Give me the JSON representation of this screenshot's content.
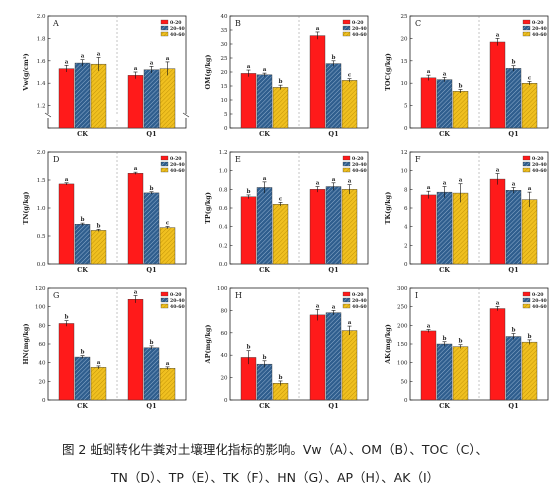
{
  "legend": [
    "0-20",
    "20-40",
    "40-60"
  ],
  "colors": {
    "s0": "#ff1a1a",
    "s1": "#2f5e8e",
    "s2": "#f0c020"
  },
  "categories": [
    "CK",
    "Q1"
  ],
  "caption": {
    "line1": "图 2 蚯蚓转化牛粪对土壤理化指标的影响。Vw（A）、OM（B）、TOC（C）、",
    "line2": "TN（D）、TP（E）、TK（F）、HN（G）、AP（H）、AK（I）"
  },
  "chart_data": [
    {
      "panel": "A",
      "type": "bar",
      "ylabel": "Vw(g/cm³)",
      "ylim": [
        1.0,
        2.0
      ],
      "ticks": [
        "",
        "1.2",
        "1.4",
        "1.6",
        "1.8",
        "2.0"
      ],
      "axis_break": true,
      "categories": [
        "CK",
        "Q1"
      ],
      "series": [
        {
          "name": "0-20",
          "values": [
            1.53,
            1.47
          ],
          "err": [
            0.03,
            0.03
          ],
          "sig": [
            "a",
            "a"
          ]
        },
        {
          "name": "20-40",
          "values": [
            1.58,
            1.52
          ],
          "err": [
            0.03,
            0.03
          ],
          "sig": [
            "a",
            "a"
          ]
        },
        {
          "name": "40-60",
          "values": [
            1.57,
            1.53
          ],
          "err": [
            0.06,
            0.06
          ],
          "sig": [
            "a",
            "a"
          ]
        }
      ]
    },
    {
      "panel": "B",
      "type": "bar",
      "ylabel": "OM(g/kg)",
      "ylim": [
        0,
        40
      ],
      "ticks": [
        "0",
        "5",
        "10",
        "15",
        "20",
        "25",
        "30",
        "35",
        "40"
      ],
      "categories": [
        "CK",
        "Q1"
      ],
      "series": [
        {
          "name": "0-20",
          "values": [
            19.5,
            33.0
          ],
          "err": [
            1.2,
            1.3
          ],
          "sig": [
            "a",
            "a"
          ]
        },
        {
          "name": "20-40",
          "values": [
            19.0,
            23.0
          ],
          "err": [
            0.6,
            1.0
          ],
          "sig": [
            "a",
            "b"
          ]
        },
        {
          "name": "40-60",
          "values": [
            14.5,
            17.0
          ],
          "err": [
            0.8,
            0.6
          ],
          "sig": [
            "b",
            "c"
          ]
        }
      ]
    },
    {
      "panel": "C",
      "type": "bar",
      "ylabel": "TOC(g/kg)",
      "ylim": [
        0,
        25
      ],
      "ticks": [
        "0",
        "5",
        "10",
        "15",
        "20",
        "25"
      ],
      "categories": [
        "CK",
        "Q1"
      ],
      "series": [
        {
          "name": "0-20",
          "values": [
            11.2,
            19.2
          ],
          "err": [
            0.6,
            0.8
          ],
          "sig": [
            "a",
            "a"
          ]
        },
        {
          "name": "20-40",
          "values": [
            10.8,
            13.3
          ],
          "err": [
            0.5,
            0.6
          ],
          "sig": [
            "a",
            "b"
          ]
        },
        {
          "name": "40-60",
          "values": [
            8.2,
            10.0
          ],
          "err": [
            0.4,
            0.4
          ],
          "sig": [
            "b",
            "c"
          ]
        }
      ]
    },
    {
      "panel": "D",
      "type": "bar",
      "ylabel": "TN(g/kg)",
      "ylim": [
        0,
        2.0
      ],
      "ticks": [
        "0.0",
        "0.5",
        "1.0",
        "1.5",
        "2.0"
      ],
      "categories": [
        "CK",
        "Q1"
      ],
      "series": [
        {
          "name": "0-20",
          "values": [
            1.43,
            1.62
          ],
          "err": [
            0.02,
            0.02
          ],
          "sig": [
            "a",
            "a"
          ]
        },
        {
          "name": "20-40",
          "values": [
            0.71,
            1.27
          ],
          "err": [
            0.02,
            0.02
          ],
          "sig": [
            "b",
            "b"
          ]
        },
        {
          "name": "40-60",
          "values": [
            0.6,
            0.65
          ],
          "err": [
            0.02,
            0.02
          ],
          "sig": [
            "b",
            "c"
          ]
        }
      ]
    },
    {
      "panel": "E",
      "type": "bar",
      "ylabel": "TP(g/kg)",
      "ylim": [
        0,
        1.2
      ],
      "ticks": [
        "0.0",
        "0.2",
        "0.4",
        "0.6",
        "0.8",
        "1.0",
        "1.2"
      ],
      "categories": [
        "CK",
        "Q1"
      ],
      "series": [
        {
          "name": "0-20",
          "values": [
            0.72,
            0.8
          ],
          "err": [
            0.02,
            0.03
          ],
          "sig": [
            "b",
            "a"
          ]
        },
        {
          "name": "20-40",
          "values": [
            0.82,
            0.83
          ],
          "err": [
            0.06,
            0.04
          ],
          "sig": [
            "a",
            "a"
          ]
        },
        {
          "name": "40-60",
          "values": [
            0.64,
            0.8
          ],
          "err": [
            0.02,
            0.05
          ],
          "sig": [
            "c",
            "a"
          ]
        }
      ]
    },
    {
      "panel": "F",
      "type": "bar",
      "ylabel": "TK(g/kg)",
      "ylim": [
        0,
        12
      ],
      "ticks": [
        "0",
        "2",
        "4",
        "6",
        "8",
        "10",
        "12"
      ],
      "categories": [
        "CK",
        "Q1"
      ],
      "series": [
        {
          "name": "0-20",
          "values": [
            7.4,
            9.1
          ],
          "err": [
            0.4,
            0.6
          ],
          "sig": [
            "a",
            "a"
          ]
        },
        {
          "name": "20-40",
          "values": [
            7.7,
            7.9
          ],
          "err": [
            0.6,
            0.3
          ],
          "sig": [
            "a",
            "a"
          ]
        },
        {
          "name": "40-60",
          "values": [
            7.6,
            6.9
          ],
          "err": [
            1.0,
            0.8
          ],
          "sig": [
            "a",
            "a"
          ]
        }
      ]
    },
    {
      "panel": "G",
      "type": "bar",
      "ylabel": "HN(mg/kg)",
      "ylim": [
        0,
        120
      ],
      "ticks": [
        "0",
        "20",
        "40",
        "60",
        "80",
        "100",
        "120"
      ],
      "categories": [
        "CK",
        "Q1"
      ],
      "series": [
        {
          "name": "0-20",
          "values": [
            82,
            108
          ],
          "err": [
            3,
            4
          ],
          "sig": [
            "b",
            "a"
          ]
        },
        {
          "name": "20-40",
          "values": [
            46,
            56
          ],
          "err": [
            1.5,
            2
          ],
          "sig": [
            "b",
            "b"
          ]
        },
        {
          "name": "40-60",
          "values": [
            35,
            34
          ],
          "err": [
            1.5,
            1.5
          ],
          "sig": [
            "a",
            "a"
          ]
        }
      ]
    },
    {
      "panel": "H",
      "type": "bar",
      "ylabel": "AP(mg/kg)",
      "ylim": [
        0,
        100
      ],
      "ticks": [
        "0",
        "20",
        "40",
        "60",
        "80",
        "100"
      ],
      "categories": [
        "CK",
        "Q1"
      ],
      "series": [
        {
          "name": "0-20",
          "values": [
            38,
            76
          ],
          "err": [
            6,
            5
          ],
          "sig": [
            "b",
            "a"
          ]
        },
        {
          "name": "20-40",
          "values": [
            32,
            78
          ],
          "err": [
            3,
            2
          ],
          "sig": [
            "b",
            "a"
          ]
        },
        {
          "name": "40-60",
          "values": [
            15,
            62
          ],
          "err": [
            2,
            4
          ],
          "sig": [
            "b",
            "a"
          ]
        }
      ]
    },
    {
      "panel": "I",
      "type": "bar",
      "ylabel": "AK(mg/kg)",
      "ylim": [
        0,
        300
      ],
      "ticks": [
        "0",
        "50",
        "100",
        "150",
        "200",
        "250",
        "300"
      ],
      "categories": [
        "CK",
        "Q1"
      ],
      "series": [
        {
          "name": "0-20",
          "values": [
            185,
            245
          ],
          "err": [
            4,
            6
          ],
          "sig": [
            "a",
            "a"
          ]
        },
        {
          "name": "20-40",
          "values": [
            150,
            170
          ],
          "err": [
            6,
            8
          ],
          "sig": [
            "b",
            "b"
          ]
        },
        {
          "name": "40-60",
          "values": [
            143,
            155
          ],
          "err": [
            5,
            6
          ],
          "sig": [
            "b",
            "b"
          ]
        }
      ]
    }
  ]
}
